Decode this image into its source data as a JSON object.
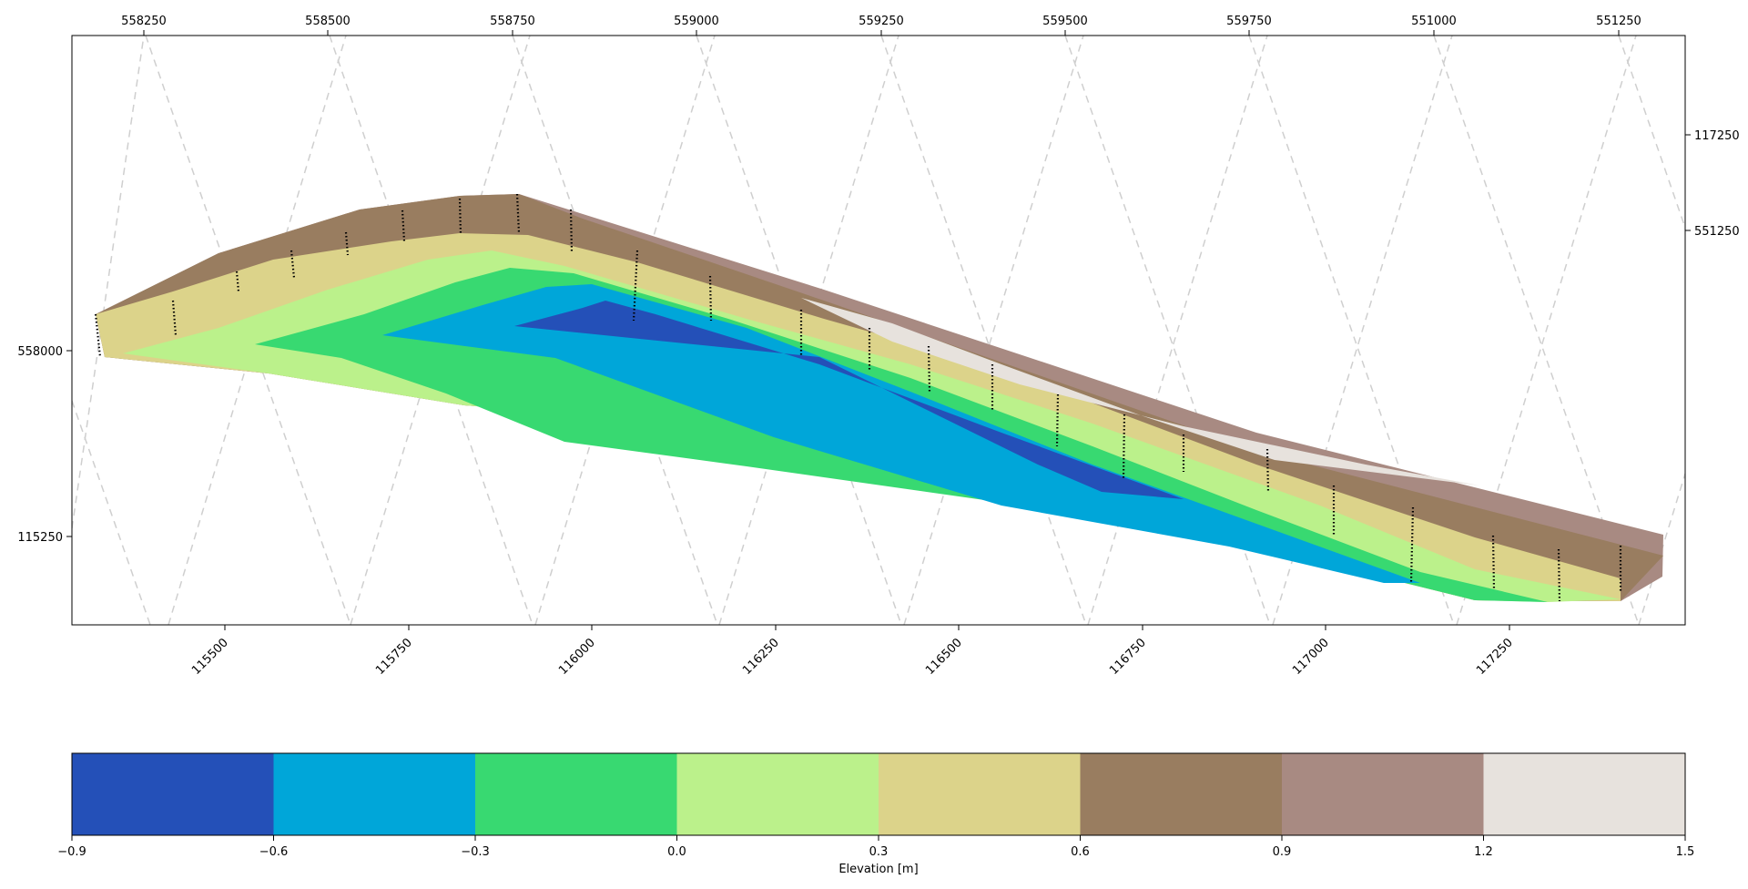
{
  "chart_data": {
    "type": "heatmap",
    "title": "",
    "bottom_axis": {
      "label": "",
      "ticks": [
        "115500",
        "115750",
        "116000",
        "116250",
        "116500",
        "116750",
        "117000",
        "117250"
      ]
    },
    "top_axis": {
      "label": "",
      "ticks": [
        "558250",
        "558500",
        "558750",
        "559000",
        "559250",
        "559500",
        "559750",
        "551000",
        "551250"
      ]
    },
    "left_axis": {
      "label": "",
      "ticks": [
        "558000",
        "115250"
      ]
    },
    "right_axis": {
      "label": "",
      "ticks": [
        "117250",
        "551250"
      ]
    },
    "grid": "rotated dashed gray graticule",
    "colorbar": {
      "label": "Elevation [m]",
      "orientation": "horizontal",
      "placement": "bottom",
      "boundaries": [
        -0.9,
        -0.6,
        -0.3,
        0.0,
        0.3,
        0.6,
        0.9,
        1.2,
        1.5
      ],
      "tick_labels": [
        "−0.9",
        "−0.6",
        "−0.3",
        "0.0",
        "0.3",
        "0.6",
        "0.9",
        "1.2",
        "1.5"
      ],
      "colors": [
        "#2450b8",
        "#00a6d9",
        "#38d971",
        "#bbf18b",
        "#dcd38a",
        "#997d60",
        "#a88a82",
        "#e7e2dd"
      ]
    },
    "levels": [
      {
        "range": [
          -0.9,
          -0.6
        ],
        "color": "#2450b8"
      },
      {
        "range": [
          -0.6,
          -0.3
        ],
        "color": "#00a6d9"
      },
      {
        "range": [
          -0.3,
          0.0
        ],
        "color": "#38d971"
      },
      {
        "range": [
          0.0,
          0.3
        ],
        "color": "#bbf18b"
      },
      {
        "range": [
          0.3,
          0.6
        ],
        "color": "#dcd38a"
      },
      {
        "range": [
          0.6,
          0.9
        ],
        "color": "#997d60"
      },
      {
        "range": [
          0.9,
          1.2
        ],
        "color": "#a88a82"
      },
      {
        "range": [
          1.2,
          1.5
        ],
        "color": "#e7e2dd"
      }
    ],
    "profile_lines": 24
  }
}
